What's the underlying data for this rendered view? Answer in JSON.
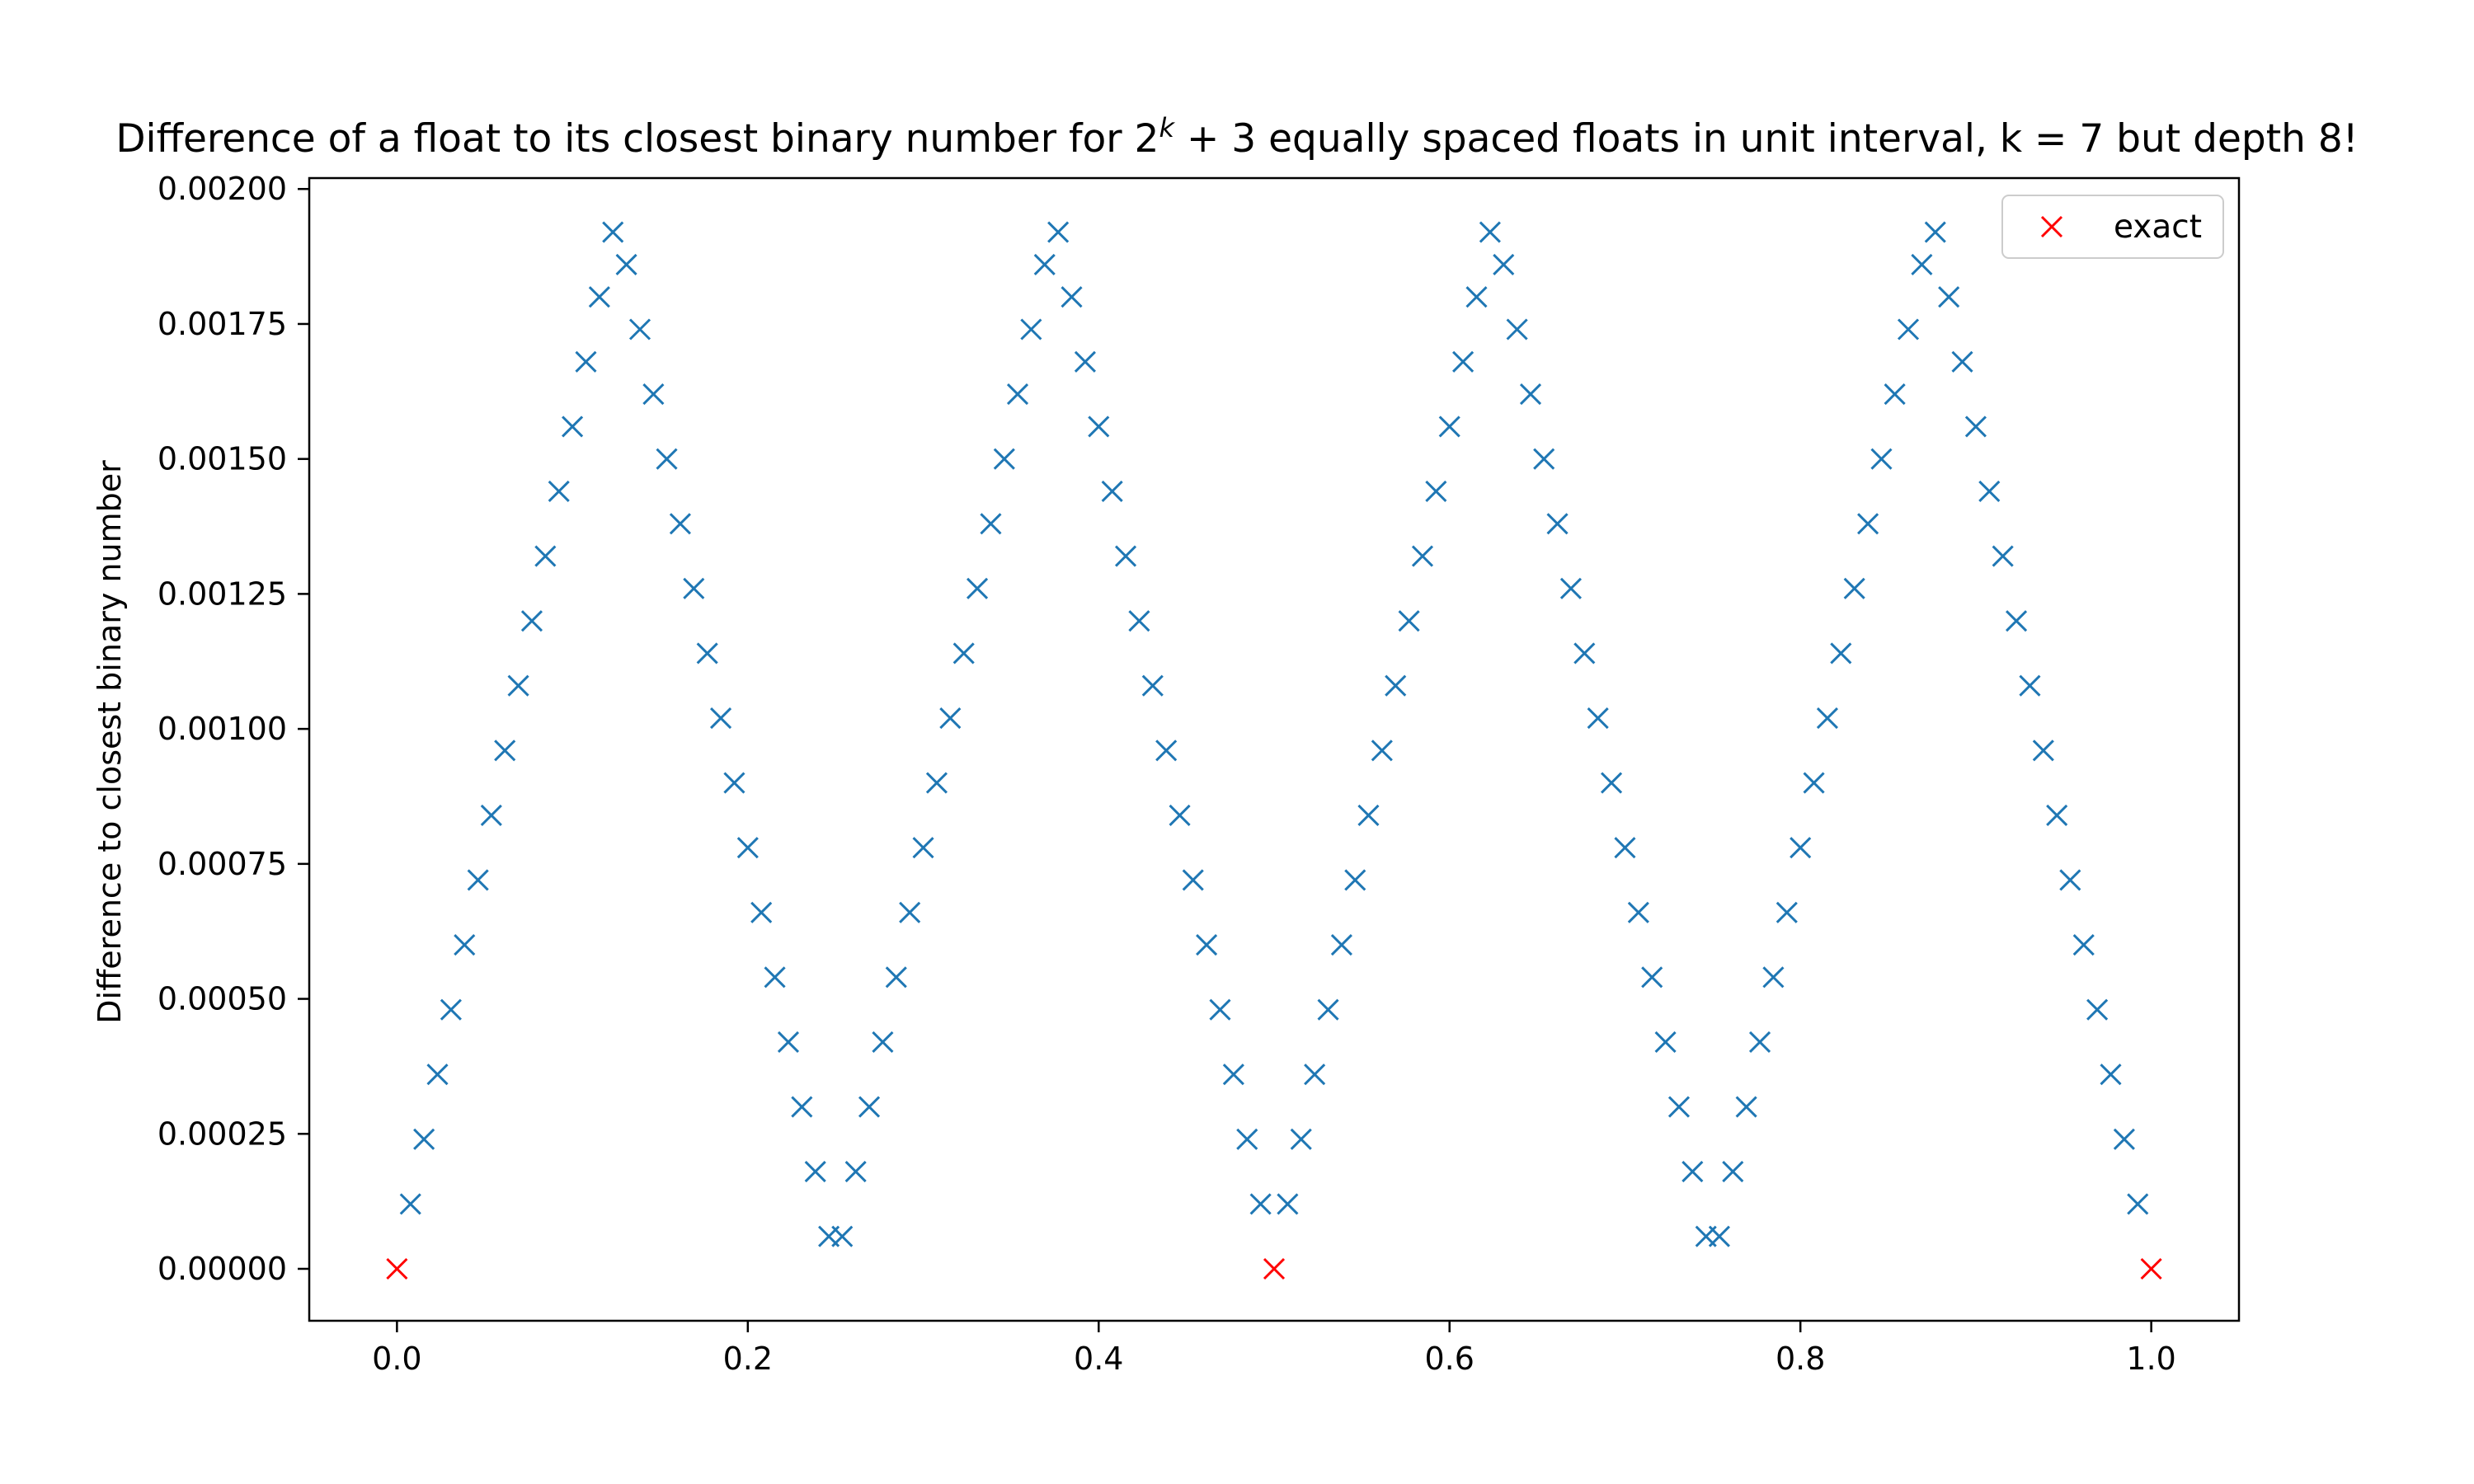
{
  "chart_data": {
    "type": "scatter",
    "title": {
      "prefix": "Difference of a float to its closest binary number for 2",
      "superscript": "k",
      "suffix": " + 3 equally spaced floats in unit interval, k = 7 but depth 8!"
    },
    "xlabel": "",
    "ylabel": "Difference to closest binary number",
    "xlim": [
      -0.05,
      1.05
    ],
    "ylim": [
      -9.62e-05,
      0.0020202
    ],
    "xticks": [
      0.0,
      0.2,
      0.4,
      0.6,
      0.8,
      1.0
    ],
    "xtick_labels": [
      "0.0",
      "0.2",
      "0.4",
      "0.6",
      "0.8",
      "1.0"
    ],
    "yticks": [
      0,
      0.00025,
      0.0005,
      0.00075,
      0.001,
      0.00125,
      0.0015,
      0.00175,
      0.002
    ],
    "ytick_labels": [
      "0.00000",
      "0.00025",
      "0.00050",
      "0.00075",
      "0.00100",
      "0.00125",
      "0.00150",
      "0.00175",
      "0.00200"
    ],
    "grid": false,
    "legend": {
      "location": "upper right",
      "entries": [
        {
          "label": "exact",
          "color": "#ff0000",
          "marker": "x"
        }
      ]
    },
    "n_points": 131,
    "x_range": [
      0.0,
      1.0
    ],
    "depth": 8,
    "series": [
      {
        "name": "",
        "color": "#1f77b4",
        "marker": "x",
        "points": [
          [
            0.0077,
            0.00012
          ],
          [
            0.0154,
            0.00024
          ],
          [
            0.0231,
            0.00036
          ],
          [
            0.0308,
            0.00048
          ],
          [
            0.0385,
            0.0006
          ],
          [
            0.0462,
            0.00072
          ],
          [
            0.0538,
            0.00084
          ],
          [
            0.0615,
            0.00096
          ],
          [
            0.0692,
            0.00108
          ],
          [
            0.0769,
            0.0012
          ],
          [
            0.0846,
            0.00132
          ],
          [
            0.0923,
            0.00144
          ],
          [
            0.1,
            0.00156
          ],
          [
            0.1077,
            0.00168
          ],
          [
            0.1154,
            0.0018
          ],
          [
            0.1231,
            0.00192
          ],
          [
            0.1308,
            0.00186
          ],
          [
            0.1385,
            0.00174
          ],
          [
            0.1462,
            0.00162
          ],
          [
            0.1538,
            0.0015
          ],
          [
            0.1615,
            0.00138
          ],
          [
            0.1692,
            0.00126
          ],
          [
            0.1769,
            0.00114
          ],
          [
            0.1846,
            0.00102
          ],
          [
            0.1923,
            0.0009
          ],
          [
            0.2,
            0.00078
          ],
          [
            0.2077,
            0.00066
          ],
          [
            0.2154,
            0.00054
          ],
          [
            0.2231,
            0.00042
          ],
          [
            0.2308,
            0.0003
          ],
          [
            0.2385,
            0.00018
          ],
          [
            0.2462,
            6e-05
          ],
          [
            0.2538,
            6e-05
          ],
          [
            0.2615,
            0.00018
          ],
          [
            0.2692,
            0.0003
          ],
          [
            0.2769,
            0.00042
          ],
          [
            0.2846,
            0.00054
          ],
          [
            0.2923,
            0.00066
          ],
          [
            0.3,
            0.00078
          ],
          [
            0.3077,
            0.0009
          ],
          [
            0.3154,
            0.00102
          ],
          [
            0.3231,
            0.00114
          ],
          [
            0.3308,
            0.00126
          ],
          [
            0.3385,
            0.00138
          ],
          [
            0.3462,
            0.0015
          ],
          [
            0.3538,
            0.00162
          ],
          [
            0.3615,
            0.00174
          ],
          [
            0.3692,
            0.00186
          ],
          [
            0.3769,
            0.00192
          ],
          [
            0.3846,
            0.0018
          ],
          [
            0.3923,
            0.00168
          ],
          [
            0.4,
            0.00156
          ],
          [
            0.4077,
            0.00144
          ],
          [
            0.4154,
            0.00132
          ],
          [
            0.4231,
            0.0012
          ],
          [
            0.4308,
            0.00108
          ],
          [
            0.4385,
            0.00096
          ],
          [
            0.4462,
            0.00084
          ],
          [
            0.4538,
            0.00072
          ],
          [
            0.4615,
            0.0006
          ],
          [
            0.4692,
            0.00048
          ],
          [
            0.4769,
            0.00036
          ],
          [
            0.4846,
            0.00024
          ],
          [
            0.4923,
            0.00012
          ],
          [
            0.5077,
            0.00012
          ],
          [
            0.5154,
            0.00024
          ],
          [
            0.5231,
            0.00036
          ],
          [
            0.5308,
            0.00048
          ],
          [
            0.5385,
            0.0006
          ],
          [
            0.5462,
            0.00072
          ],
          [
            0.5538,
            0.00084
          ],
          [
            0.5615,
            0.00096
          ],
          [
            0.5692,
            0.00108
          ],
          [
            0.5769,
            0.0012
          ],
          [
            0.5846,
            0.00132
          ],
          [
            0.5923,
            0.00144
          ],
          [
            0.6,
            0.00156
          ],
          [
            0.6077,
            0.00168
          ],
          [
            0.6154,
            0.0018
          ],
          [
            0.6231,
            0.00192
          ],
          [
            0.6308,
            0.00186
          ],
          [
            0.6385,
            0.00174
          ],
          [
            0.6462,
            0.00162
          ],
          [
            0.6538,
            0.0015
          ],
          [
            0.6615,
            0.00138
          ],
          [
            0.6692,
            0.00126
          ],
          [
            0.6769,
            0.00114
          ],
          [
            0.6846,
            0.00102
          ],
          [
            0.6923,
            0.0009
          ],
          [
            0.7,
            0.00078
          ],
          [
            0.7077,
            0.00066
          ],
          [
            0.7154,
            0.00054
          ],
          [
            0.7231,
            0.00042
          ],
          [
            0.7308,
            0.0003
          ],
          [
            0.7385,
            0.00018
          ],
          [
            0.7462,
            6e-05
          ],
          [
            0.7538,
            6e-05
          ],
          [
            0.7615,
            0.00018
          ],
          [
            0.7692,
            0.0003
          ],
          [
            0.7769,
            0.00042
          ],
          [
            0.7846,
            0.00054
          ],
          [
            0.7923,
            0.00066
          ],
          [
            0.8,
            0.00078
          ],
          [
            0.8077,
            0.0009
          ],
          [
            0.8154,
            0.00102
          ],
          [
            0.8231,
            0.00114
          ],
          [
            0.8308,
            0.00126
          ],
          [
            0.8385,
            0.00138
          ],
          [
            0.8462,
            0.0015
          ],
          [
            0.8538,
            0.00162
          ],
          [
            0.8615,
            0.00174
          ],
          [
            0.8692,
            0.00186
          ],
          [
            0.8769,
            0.00192
          ],
          [
            0.8846,
            0.0018
          ],
          [
            0.8923,
            0.00168
          ],
          [
            0.9,
            0.00156
          ],
          [
            0.9077,
            0.00144
          ],
          [
            0.9154,
            0.00132
          ],
          [
            0.9231,
            0.0012
          ],
          [
            0.9308,
            0.00108
          ],
          [
            0.9385,
            0.00096
          ],
          [
            0.9462,
            0.00084
          ],
          [
            0.9538,
            0.00072
          ],
          [
            0.9615,
            0.0006
          ],
          [
            0.9692,
            0.00048
          ],
          [
            0.9769,
            0.00036
          ],
          [
            0.9846,
            0.00024
          ],
          [
            0.9923,
            0.00012
          ]
        ]
      },
      {
        "name": "exact",
        "color": "#ff0000",
        "marker": "x",
        "points": [
          [
            0.0,
            0.0
          ],
          [
            0.5,
            0.0
          ],
          [
            1.0,
            0.0
          ]
        ]
      }
    ]
  }
}
